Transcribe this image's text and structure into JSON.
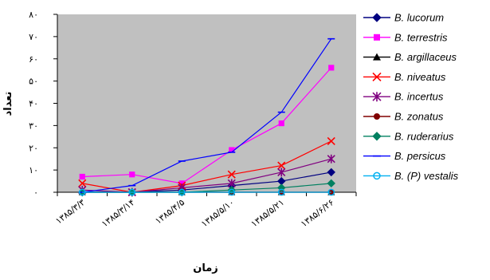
{
  "chart_data": {
    "type": "line",
    "title": "",
    "xlabel": "زمان",
    "ylabel": "تعداد",
    "ylim": [
      0,
      80
    ],
    "yticks": [
      "۰",
      "۱۰",
      "۲۰",
      "۳۰",
      "۴۰",
      "۵۰",
      "۶۰",
      "۷۰",
      "۸۰"
    ],
    "categories": [
      "۱۳۸۵/۳/۳",
      "۱۳۸۵/۳/۱۴",
      "۱۳۸۵/۴/۵",
      "۱۳۸۵/۵/۱۰",
      "۱۳۸۵/۵/۲۱",
      "۱۳۸۵/۶/۲۶"
    ],
    "grid": false,
    "legend": "right",
    "plot_background": "#c0c0c0",
    "series": [
      {
        "name": "B. lucorum",
        "color": "#000080",
        "marker": "diamond",
        "values": [
          0,
          0,
          1,
          3,
          5,
          9
        ]
      },
      {
        "name": "B. terrestris",
        "color": "#ff00ff",
        "marker": "square",
        "values": [
          7,
          8,
          4,
          19,
          31,
          56
        ]
      },
      {
        "name": "B. argillaceus",
        "color": "#000000",
        "marker": "triangle",
        "values": [
          0,
          0,
          0,
          0,
          0,
          0
        ]
      },
      {
        "name": "B. niveatus",
        "color": "#ff0000",
        "marker": "x",
        "values": [
          4,
          0,
          3,
          8,
          12,
          23
        ]
      },
      {
        "name": "B. incertus",
        "color": "#800080",
        "marker": "star",
        "values": [
          1,
          0,
          2,
          4,
          9,
          15
        ]
      },
      {
        "name": "B. zonatus",
        "color": "#800000",
        "marker": "circle",
        "values": [
          0,
          0,
          0,
          0,
          0,
          0
        ]
      },
      {
        "name": "B. ruderarius",
        "color": "#008060",
        "marker": "diamond",
        "values": [
          0,
          0,
          0,
          1,
          2,
          4
        ]
      },
      {
        "name": "B. persicus",
        "color": "#0000ff",
        "marker": "dash",
        "values": [
          0,
          3,
          14,
          18,
          36,
          69
        ]
      },
      {
        "name": "B. (P) vestalis",
        "color": "#00b0f0",
        "marker": "open-circle",
        "values": [
          0,
          0,
          0,
          0,
          0,
          0
        ]
      }
    ]
  }
}
